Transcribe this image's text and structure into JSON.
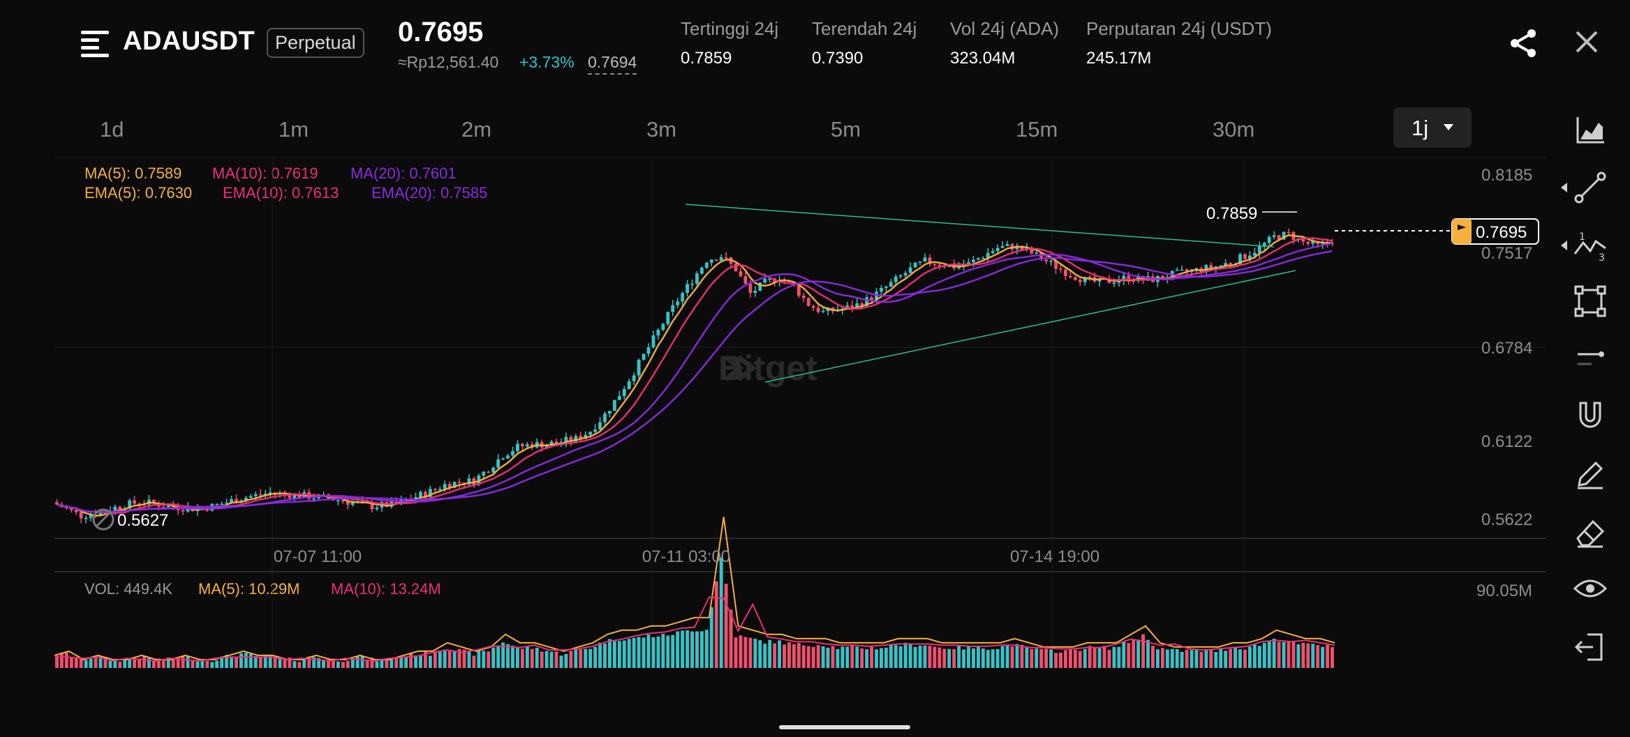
{
  "header": {
    "symbol": "ADAUSDT",
    "contract_type": "Perpetual",
    "badge_label": "Perpetual",
    "last_price": "0.7695",
    "rp_price": "≈Rp12,561.40",
    "change_pct": "+3.73%",
    "mark_price": "0.7694",
    "stats": [
      {
        "label": "Tertinggi 24j",
        "value": "0.7859"
      },
      {
        "label": "Terendah 24j",
        "value": "0.7390"
      },
      {
        "label": "Vol 24j (ADA)",
        "value": "323.04M"
      },
      {
        "label": "Perputaran 24j (USDT)",
        "value": "245.17M"
      }
    ]
  },
  "intervals": [
    "1d",
    "1m",
    "2m",
    "3m",
    "5m",
    "15m",
    "30m"
  ],
  "active_interval": "1j",
  "indicators": {
    "ma5": "MA(5): 0.7589",
    "ma10": "MA(10): 0.7619",
    "ma20": "MA(20): 0.7601",
    "ema5": "EMA(5): 0.7630",
    "ema10": "EMA(10): 0.7613",
    "ema20": "EMA(20): 0.7585"
  },
  "volume_legend": {
    "vol": "VOL: 449.4K",
    "ma5": "MA(5): 10.29M",
    "ma10": "MA(10): 13.24M",
    "max": "90.05M"
  },
  "watermark": "Bitget",
  "colors": {
    "up": "#36c3c8",
    "down": "#f0506e",
    "ma5": "#f5b13d",
    "ma10": "#ec2f78",
    "ma20": "#8a2be2",
    "trendline": "#2bbf95"
  },
  "icons": {
    "menu": "menu-icon",
    "share": "share-icon",
    "close": "close-icon",
    "toolbar": [
      "chart-type-icon",
      "trend-line-icon",
      "fibonacci-icon",
      "shape-icon",
      "horizontal-line-icon",
      "magnet-icon",
      "pencil-icon",
      "eraser-icon",
      "eye-icon",
      "exit-icon"
    ]
  },
  "chart_data": {
    "type": "candlestick",
    "price_axis_ticks": [
      "0.8185",
      "0.7517",
      "0.6784",
      "0.6122",
      "0.5622"
    ],
    "time_axis_ticks": [
      "07-07 11:00",
      "07-11 03:00",
      "07-14 19:00"
    ],
    "high_label": "0.7859",
    "low_label": "0.5627",
    "current_price_label": "0.7695",
    "ylim": [
      0.5622,
      0.8185
    ],
    "close_path": [
      0.575,
      0.57,
      0.565,
      0.567,
      0.57,
      0.573,
      0.575,
      0.574,
      0.572,
      0.571,
      0.57,
      0.572,
      0.575,
      0.578,
      0.58,
      0.582,
      0.581,
      0.58,
      0.579,
      0.578,
      0.576,
      0.574,
      0.572,
      0.573,
      0.575,
      0.579,
      0.583,
      0.588,
      0.59,
      0.591,
      0.6,
      0.61,
      0.616,
      0.618,
      0.618,
      0.62,
      0.622,
      0.628,
      0.64,
      0.655,
      0.672,
      0.69,
      0.708,
      0.725,
      0.74,
      0.755,
      0.758,
      0.748,
      0.73,
      0.738,
      0.742,
      0.735,
      0.722,
      0.716,
      0.718,
      0.72,
      0.725,
      0.732,
      0.74,
      0.748,
      0.754,
      0.752,
      0.75,
      0.752,
      0.758,
      0.764,
      0.765,
      0.762,
      0.756,
      0.75,
      0.744,
      0.74,
      0.738,
      0.74,
      0.742,
      0.74,
      0.741,
      0.744,
      0.746,
      0.748,
      0.75,
      0.753,
      0.758,
      0.764,
      0.772,
      0.774,
      0.768,
      0.765,
      0.769
    ],
    "volume_path": [
      3,
      4,
      2,
      3,
      2,
      2,
      3,
      2,
      2,
      3,
      2,
      2,
      3,
      4,
      3,
      3,
      2,
      2,
      3,
      2,
      2,
      3,
      2,
      2,
      3,
      4,
      4,
      6,
      5,
      4,
      5,
      8,
      6,
      6,
      5,
      4,
      5,
      6,
      8,
      9,
      9,
      10,
      10,
      11,
      12,
      12,
      36,
      10,
      9,
      8,
      8,
      7,
      7,
      7,
      6,
      6,
      6,
      6,
      7,
      7,
      7,
      6,
      6,
      6,
      6,
      6,
      7,
      6,
      5,
      5,
      5,
      6,
      6,
      6,
      8,
      10,
      6,
      5,
      5,
      5,
      5,
      6,
      6,
      7,
      9,
      8,
      7,
      7,
      6
    ]
  }
}
